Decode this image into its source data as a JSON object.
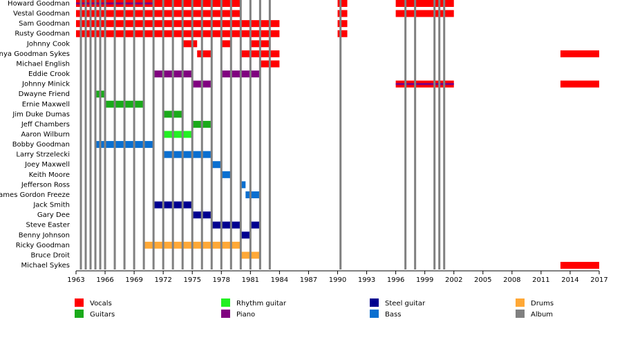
{
  "chart_data": {
    "type": "timeline",
    "xlim": [
      1963,
      2017
    ],
    "xticks": [
      1963,
      1966,
      1969,
      1972,
      1975,
      1978,
      1981,
      1984,
      1987,
      1990,
      1993,
      1996,
      1999,
      2002,
      2005,
      2008,
      2011,
      2014,
      2017
    ],
    "roles": [
      {
        "name": "Vocals",
        "color": "#ff0000"
      },
      {
        "name": "Guitars",
        "color": "#1aaa1a"
      },
      {
        "name": "Rhythm guitar",
        "color": "#22f022"
      },
      {
        "name": "Piano",
        "color": "#800080"
      },
      {
        "name": "Steel guitar",
        "color": "#000090"
      },
      {
        "name": "Bass",
        "color": "#0a6fd0"
      },
      {
        "name": "Drums",
        "color": "#ffa836"
      },
      {
        "name": "Album",
        "color": "#808080"
      }
    ],
    "albums": [
      1963.5,
      1964,
      1964.5,
      1965,
      1965.5,
      1966,
      1967,
      1968,
      1969,
      1970,
      1971,
      1972,
      1973,
      1974,
      1975,
      1976,
      1977,
      1978,
      1979,
      1980,
      1981,
      1982,
      1983,
      1990.3,
      1997,
      1998,
      2000,
      2000.5,
      2001
    ],
    "members": [
      {
        "name": "Howard Goodman",
        "periods": [
          {
            "role": "Vocals",
            "start": 1963,
            "end": 1980
          },
          {
            "role": "Vocals",
            "start": 1990,
            "end": 1991
          },
          {
            "role": "Vocals",
            "start": 1996,
            "end": 2002
          }
        ],
        "lines": [
          {
            "role": "Piano",
            "start": 1963,
            "end": 1971
          }
        ]
      },
      {
        "name": "Vestal Goodman",
        "periods": [
          {
            "role": "Vocals",
            "start": 1963,
            "end": 1980
          },
          {
            "role": "Vocals",
            "start": 1990,
            "end": 1991
          },
          {
            "role": "Vocals",
            "start": 1996,
            "end": 2002
          }
        ]
      },
      {
        "name": "Sam Goodman",
        "periods": [
          {
            "role": "Vocals",
            "start": 1963,
            "end": 1984
          },
          {
            "role": "Vocals",
            "start": 1990,
            "end": 1991
          }
        ]
      },
      {
        "name": "Rusty Goodman",
        "periods": [
          {
            "role": "Vocals",
            "start": 1963,
            "end": 1984
          },
          {
            "role": "Vocals",
            "start": 1990,
            "end": 1991
          }
        ]
      },
      {
        "name": "Johnny Cook",
        "periods": [
          {
            "role": "Vocals",
            "start": 1974,
            "end": 1975.5
          },
          {
            "role": "Vocals",
            "start": 1978,
            "end": 1979
          },
          {
            "role": "Vocals",
            "start": 1981,
            "end": 1983
          }
        ]
      },
      {
        "name": "Tanya Goodman Sykes",
        "periods": [
          {
            "role": "Vocals",
            "start": 1975.5,
            "end": 1977
          },
          {
            "role": "Vocals",
            "start": 1980,
            "end": 1984
          },
          {
            "role": "Vocals",
            "start": 2013,
            "end": 2017
          }
        ]
      },
      {
        "name": "Michael English",
        "periods": [
          {
            "role": "Vocals",
            "start": 1982,
            "end": 1984
          }
        ]
      },
      {
        "name": "Eddie Crook",
        "periods": [
          {
            "role": "Piano",
            "start": 1971,
            "end": 1975
          },
          {
            "role": "Piano",
            "start": 1978,
            "end": 1982
          }
        ]
      },
      {
        "name": "Johnny Minick",
        "periods": [
          {
            "role": "Piano",
            "start": 1975,
            "end": 1977
          },
          {
            "role": "Vocals",
            "start": 1996,
            "end": 2002
          },
          {
            "role": "Vocals",
            "start": 2013,
            "end": 2017
          }
        ],
        "lines": [
          {
            "role": "Piano",
            "start": 1996,
            "end": 2002
          }
        ]
      },
      {
        "name": "Dwayne Friend",
        "periods": [
          {
            "role": "Guitars",
            "start": 1965,
            "end": 1966
          }
        ]
      },
      {
        "name": "Ernie Maxwell",
        "periods": [
          {
            "role": "Guitars",
            "start": 1966,
            "end": 1970
          }
        ]
      },
      {
        "name": "Jim Duke Dumas",
        "periods": [
          {
            "role": "Guitars",
            "start": 1972,
            "end": 1974
          }
        ]
      },
      {
        "name": "Jeff Chambers",
        "periods": [
          {
            "role": "Guitars",
            "start": 1975,
            "end": 1977
          }
        ]
      },
      {
        "name": "Aaron Wilburn",
        "periods": [
          {
            "role": "Rhythm guitar",
            "start": 1972,
            "end": 1975
          }
        ]
      },
      {
        "name": "Bobby Goodman",
        "periods": [
          {
            "role": "Bass",
            "start": 1965,
            "end": 1971
          }
        ]
      },
      {
        "name": "Larry Strzelecki",
        "periods": [
          {
            "role": "Bass",
            "start": 1972,
            "end": 1977
          }
        ]
      },
      {
        "name": "Joey Maxwell",
        "periods": [
          {
            "role": "Bass",
            "start": 1977,
            "end": 1978
          }
        ]
      },
      {
        "name": "Keith Moore",
        "periods": [
          {
            "role": "Bass",
            "start": 1978,
            "end": 1979
          }
        ]
      },
      {
        "name": "Jefferson Ross",
        "periods": [
          {
            "role": "Bass",
            "start": 1980,
            "end": 1980.5
          }
        ]
      },
      {
        "name": "James Gordon Freeze",
        "periods": [
          {
            "role": "Bass",
            "start": 1980.5,
            "end": 1982
          }
        ]
      },
      {
        "name": "Jack Smith",
        "periods": [
          {
            "role": "Steel guitar",
            "start": 1971,
            "end": 1975
          }
        ]
      },
      {
        "name": "Gary Dee",
        "periods": [
          {
            "role": "Steel guitar",
            "start": 1975,
            "end": 1977
          }
        ]
      },
      {
        "name": "Steve Easter",
        "periods": [
          {
            "role": "Steel guitar",
            "start": 1977,
            "end": 1980
          },
          {
            "role": "Steel guitar",
            "start": 1981,
            "end": 1982
          }
        ]
      },
      {
        "name": "Benny Johnson",
        "periods": [
          {
            "role": "Steel guitar",
            "start": 1980,
            "end": 1981
          }
        ]
      },
      {
        "name": "Ricky Goodman",
        "periods": [
          {
            "role": "Drums",
            "start": 1970,
            "end": 1980
          }
        ]
      },
      {
        "name": "Bruce Droit",
        "periods": [
          {
            "role": "Drums",
            "start": 1980,
            "end": 1982
          }
        ]
      },
      {
        "name": "Michael Sykes",
        "periods": [
          {
            "role": "Vocals",
            "start": 2013,
            "end": 2017
          }
        ]
      }
    ]
  }
}
